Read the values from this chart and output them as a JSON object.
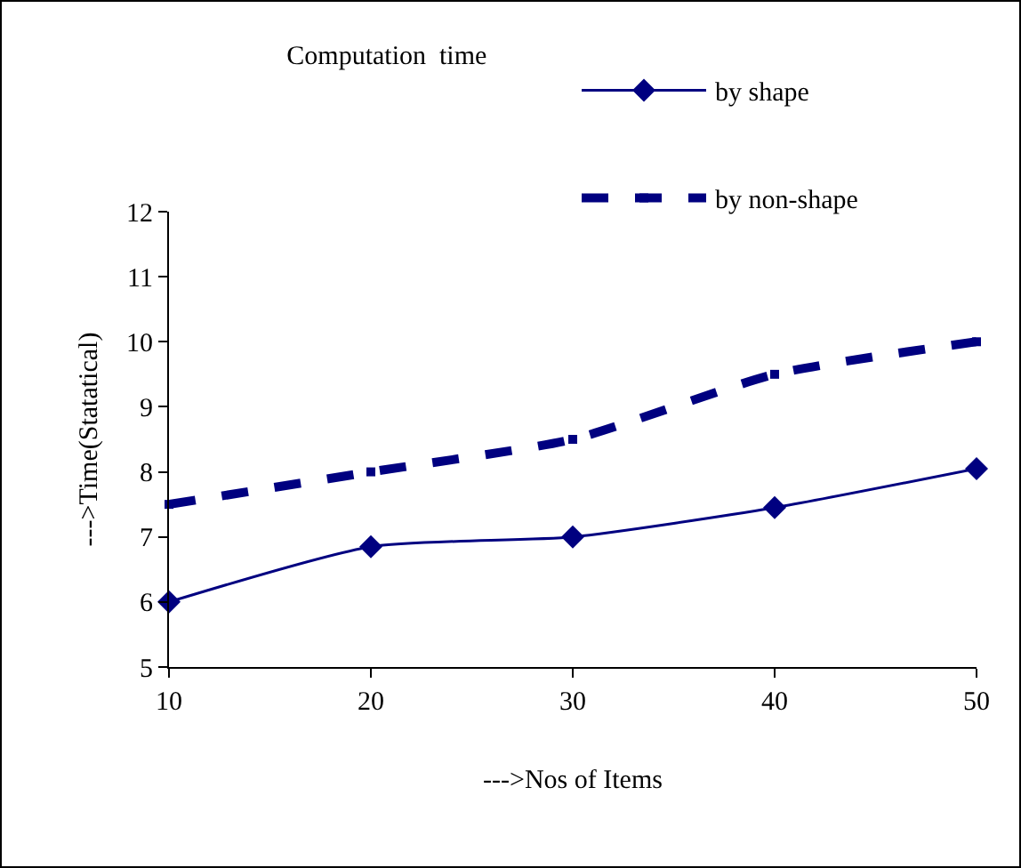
{
  "chart_data": {
    "type": "line",
    "title": "Computation  time",
    "xlabel": "--->Nos of Items",
    "ylabel": "--->Time(Statatical)",
    "x": [
      10,
      20,
      30,
      40,
      50
    ],
    "series": [
      {
        "name": "by shape",
        "color": "#000080",
        "values": [
          6.0,
          6.85,
          7.0,
          7.45,
          8.05
        ],
        "marker": "diamond",
        "line_style": "solid"
      },
      {
        "name": "by non-shape",
        "color": "#000080",
        "values": [
          7.5,
          8.0,
          8.5,
          9.5,
          10.0
        ],
        "marker": "square",
        "line_style": "dashed"
      }
    ],
    "xlim": [
      10,
      50
    ],
    "xticks": [
      10,
      20,
      30,
      40,
      50
    ],
    "ylim": [
      5,
      12
    ],
    "yticks": [
      5,
      6,
      7,
      8,
      9,
      10,
      11,
      12
    ],
    "grid": false,
    "legend": "top right"
  }
}
